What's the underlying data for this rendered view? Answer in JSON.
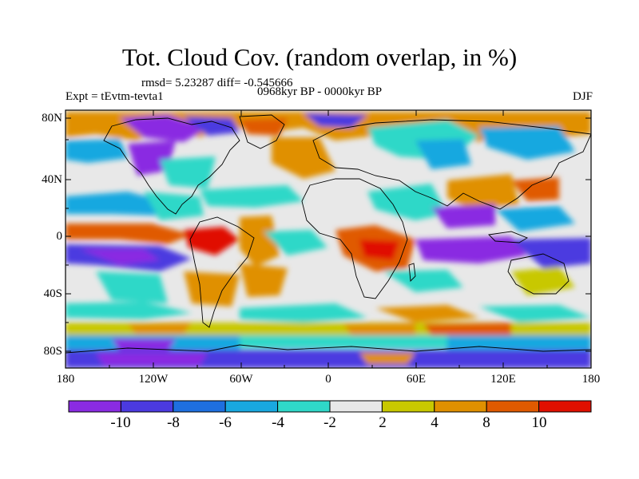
{
  "title": "Tot. Cloud Cov. (random overlap, in %)",
  "stats": "rmsd= 5.23287 diff= -0.545666",
  "period": "0968kyr BP - 0000kyr BP",
  "experiment": "Expt = tEvtm-tevta1",
  "season": "DJF",
  "lat_labels": [
    "80N",
    "40N",
    "0",
    "40S",
    "80S"
  ],
  "lon_labels": [
    "180",
    "120W",
    "60W",
    "0",
    "60E",
    "120E",
    "180"
  ],
  "colorbar": {
    "labels": [
      "-10",
      "-8",
      "-6",
      "-4",
      "-2",
      "2",
      "4",
      "8",
      "10"
    ],
    "colors": [
      "#8a2be2",
      "#4b3ae0",
      "#1e6fe0",
      "#19a8e0",
      "#2fd8c8",
      "#e8e8e8",
      "#c8c800",
      "#e09000",
      "#e05a00",
      "#e01000"
    ]
  }
}
